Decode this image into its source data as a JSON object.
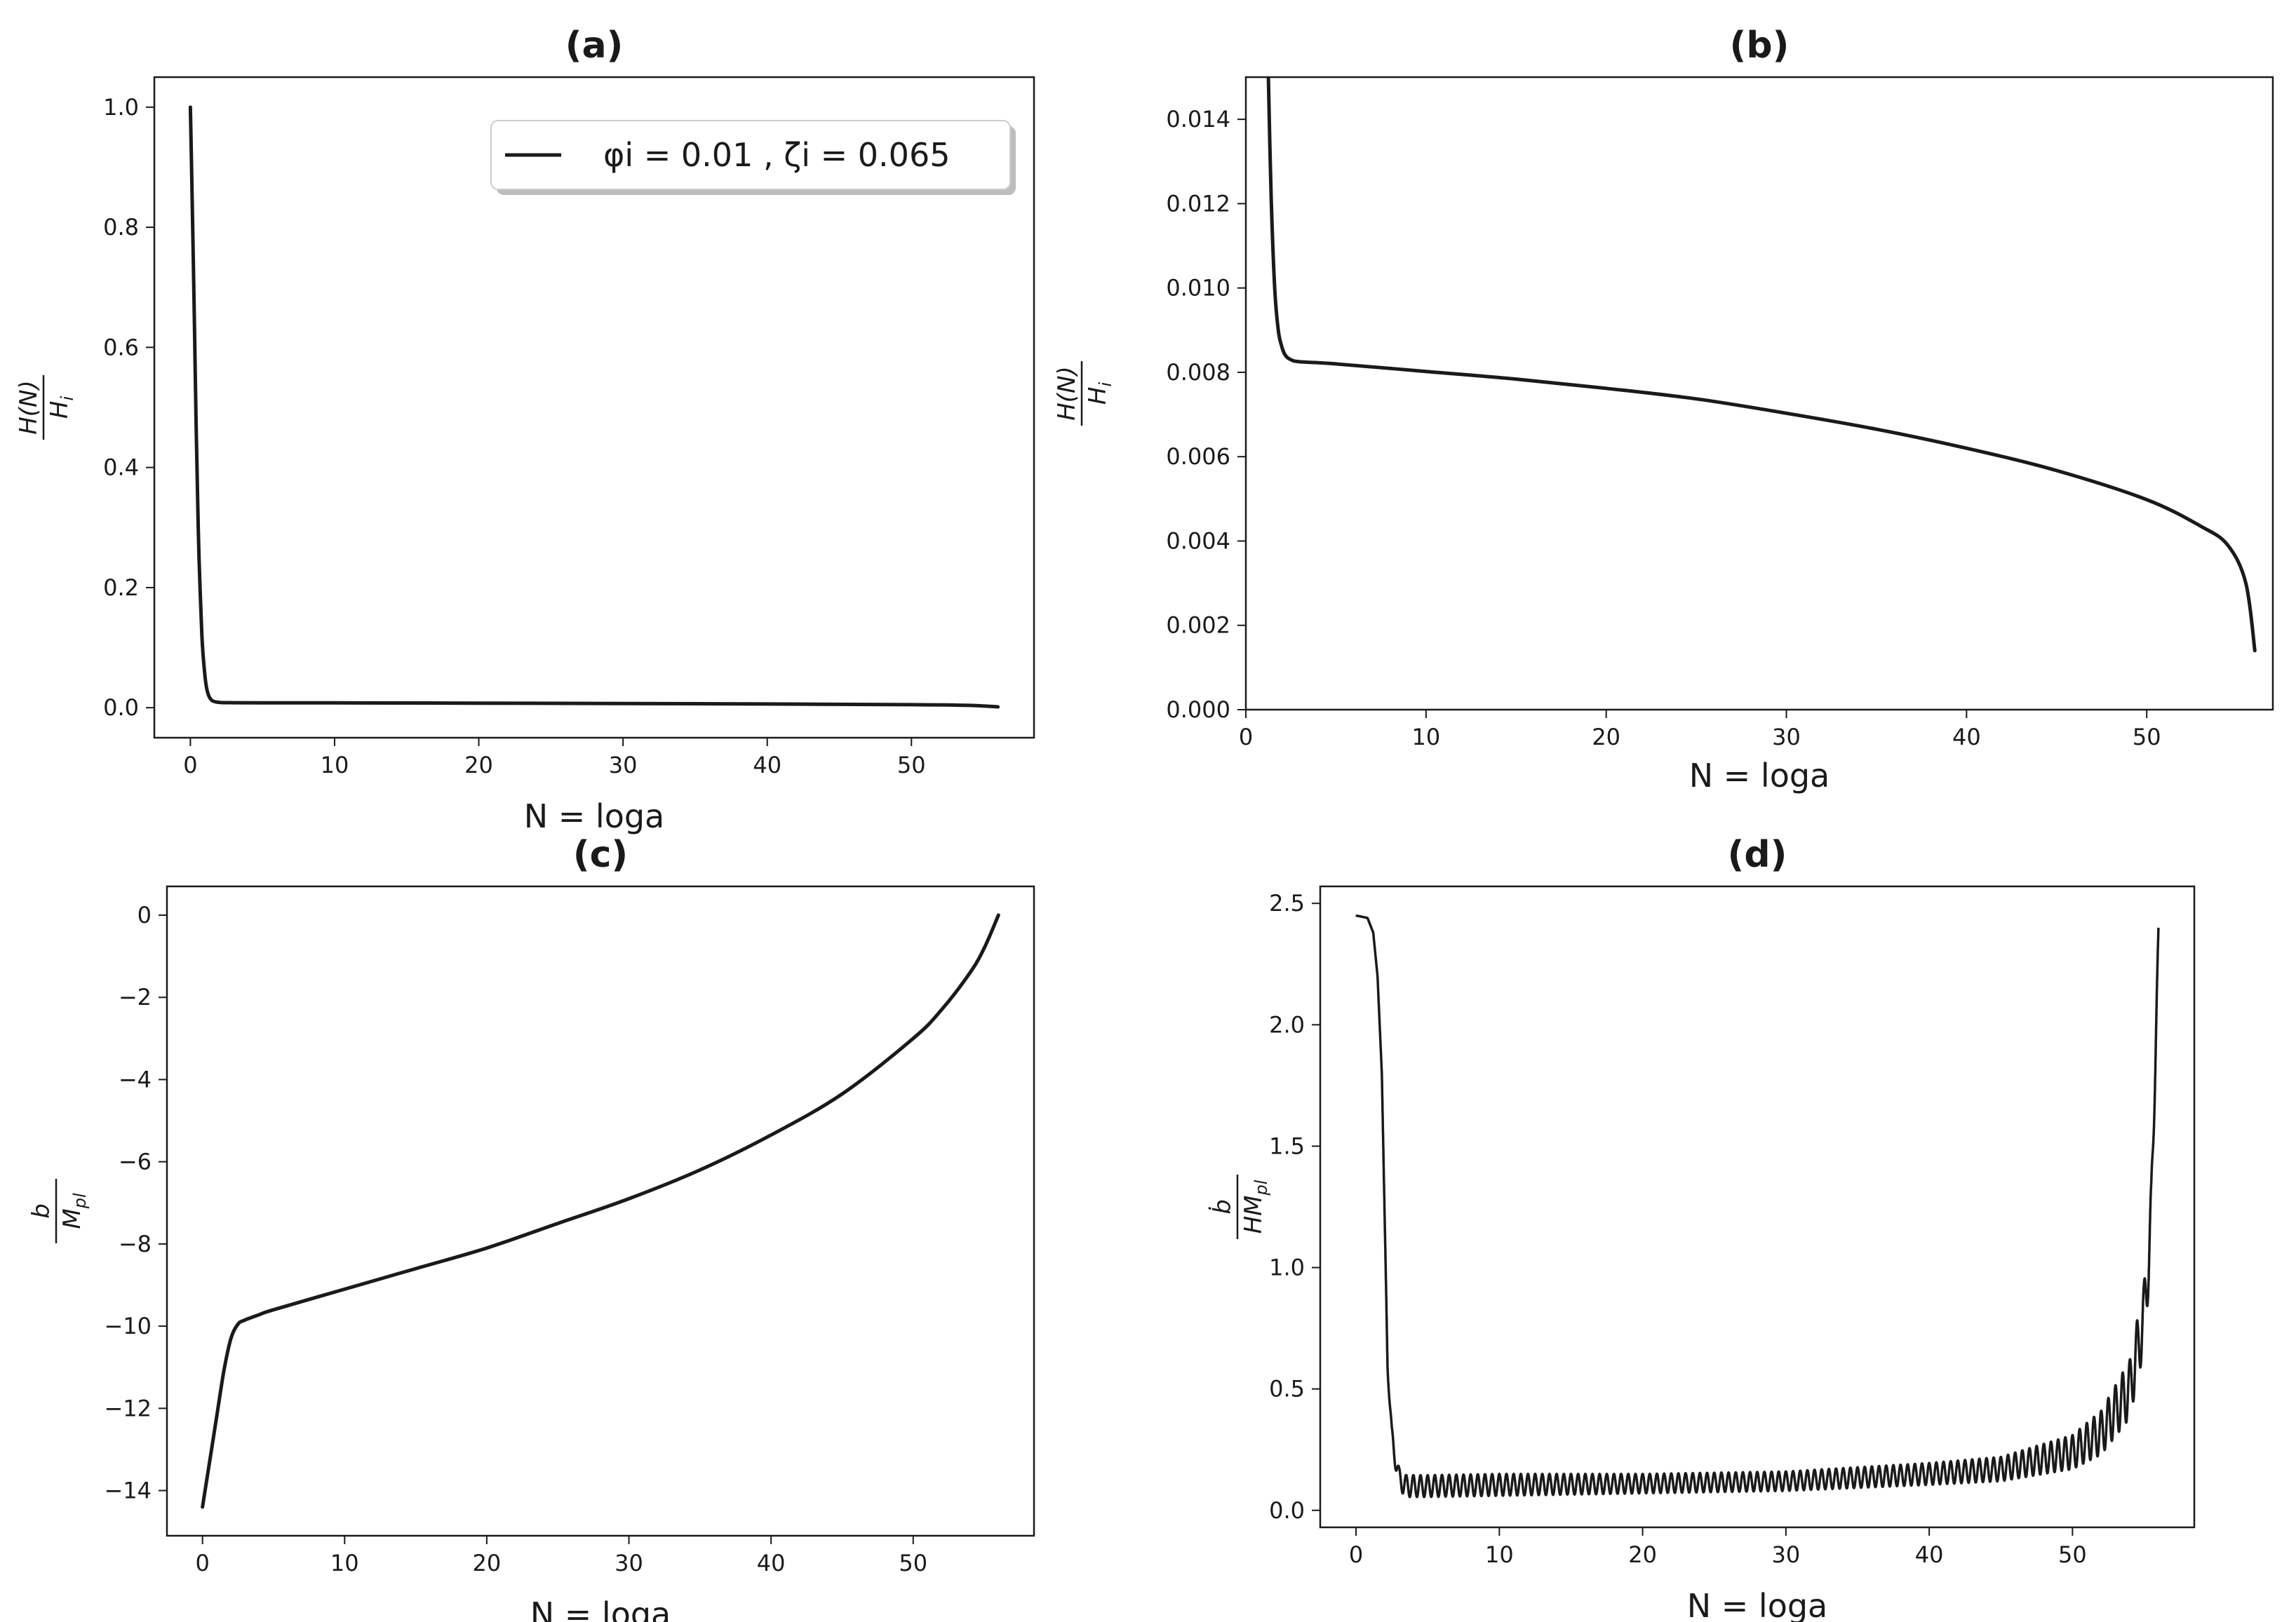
{
  "chart_data": [
    {
      "type": "line",
      "title": "(a)",
      "xlabel": "N = loga",
      "ylabel": {
        "numerator": "H(N)",
        "denominator": "H",
        "sub": "i"
      },
      "xlim": [
        -2.5,
        58.5
      ],
      "ylim": [
        -0.05,
        1.05
      ],
      "xticks": [
        0,
        10,
        20,
        30,
        40,
        50
      ],
      "yticks": [
        0.0,
        0.2,
        0.4,
        0.6,
        0.8,
        1.0
      ],
      "ytick_labels": [
        "0.0",
        "0.2",
        "0.4",
        "0.6",
        "0.8",
        "1.0"
      ],
      "grid": false,
      "legend": {
        "position": "top-right",
        "entries": [
          "φi = 0.01 , ζi = 0.065"
        ]
      },
      "series": [
        {
          "name": "φi = 0.01 , ζi = 0.065",
          "x": [
            0,
            0.1,
            0.2,
            0.3,
            0.4,
            0.5,
            0.6,
            0.8,
            1.0,
            1.2,
            1.5,
            2.0,
            2.5,
            3.0,
            5,
            10,
            20,
            30,
            40,
            50,
            54,
            56
          ],
          "y": [
            1.0,
            0.88,
            0.75,
            0.61,
            0.47,
            0.35,
            0.25,
            0.12,
            0.055,
            0.025,
            0.012,
            0.0088,
            0.0084,
            0.0083,
            0.0082,
            0.008,
            0.0076,
            0.007,
            0.0062,
            0.005,
            0.0038,
            0.0014
          ]
        }
      ]
    },
    {
      "type": "line",
      "title": "(b)",
      "xlabel": "N = loga",
      "ylabel": {
        "numerator": "H(N)",
        "denominator": "H",
        "sub": "i"
      },
      "xlim": [
        0,
        57
      ],
      "ylim": [
        0,
        0.015
      ],
      "xticks": [
        0,
        10,
        20,
        30,
        40,
        50
      ],
      "yticks": [
        0.0,
        0.002,
        0.004,
        0.006,
        0.008,
        0.01,
        0.012,
        0.014
      ],
      "ytick_labels": [
        "0.000",
        "0.002",
        "0.004",
        "0.006",
        "0.008",
        "0.010",
        "0.012",
        "0.014"
      ],
      "grid": false,
      "series": [
        {
          "x": [
            1.25,
            1.4,
            1.6,
            1.8,
            2.0,
            2.2,
            2.5,
            3.0,
            5,
            10,
            15,
            20,
            25,
            30,
            35,
            40,
            45,
            50,
            53,
            54.5,
            55.5,
            56
          ],
          "y": [
            0.015,
            0.0122,
            0.01,
            0.009,
            0.0086,
            0.0084,
            0.0083,
            0.00825,
            0.0082,
            0.00802,
            0.00784,
            0.00762,
            0.00737,
            0.00703,
            0.00665,
            0.0062,
            0.00567,
            0.00498,
            0.00435,
            0.0039,
            0.003,
            0.0014
          ]
        }
      ]
    },
    {
      "type": "line",
      "title": "(c)",
      "xlabel": "N = loga",
      "ylabel": {
        "numerator": "b",
        "denominator": "M",
        "sub": "pl"
      },
      "xlim": [
        -2.5,
        58.5
      ],
      "ylim": [
        -15.1,
        0.7
      ],
      "xticks": [
        0,
        10,
        20,
        30,
        40,
        50
      ],
      "yticks": [
        -14,
        -12,
        -10,
        -8,
        -6,
        -4,
        -2,
        0
      ],
      "ytick_labels": [
        "−14",
        "−12",
        "−10",
        "−8",
        "−6",
        "−4",
        "−2",
        "0"
      ],
      "grid": false,
      "series": [
        {
          "x": [
            0,
            0.5,
            1.0,
            1.5,
            2.0,
            2.5,
            3.0,
            4,
            5,
            10,
            15,
            20,
            25,
            30,
            35,
            40,
            45,
            50,
            52,
            54,
            55,
            56
          ],
          "y": [
            -14.4,
            -13.3,
            -12.2,
            -11.1,
            -10.3,
            -9.95,
            -9.85,
            -9.72,
            -9.6,
            -9.1,
            -8.6,
            -8.1,
            -7.5,
            -6.9,
            -6.2,
            -5.35,
            -4.35,
            -3.0,
            -2.3,
            -1.4,
            -0.8,
            0.0
          ]
        }
      ]
    },
    {
      "type": "line",
      "title": "(d)",
      "xlabel": "N = loga",
      "ylabel": {
        "numerator": "ḃ",
        "denominator": "HM",
        "sub": "pl"
      },
      "xlim": [
        -2.5,
        58.5
      ],
      "ylim": [
        -0.07,
        2.57
      ],
      "xticks": [
        0,
        10,
        20,
        30,
        40,
        50
      ],
      "yticks": [
        0.0,
        0.5,
        1.0,
        1.5,
        2.0,
        2.5
      ],
      "ytick_labels": [
        "0.0",
        "0.5",
        "1.0",
        "1.5",
        "2.0",
        "2.5"
      ],
      "grid": false,
      "series": [
        {
          "description": "oscillating band: mean and half-amplitude",
          "x": [
            0,
            0.8,
            1.2,
            1.5,
            1.8,
            2.0,
            2.2,
            2.5,
            2.8,
            3.0,
            3.5,
            4,
            5,
            10,
            20,
            30,
            40,
            45,
            50,
            52,
            54,
            55,
            55.5,
            56
          ],
          "mean": [
            2.45,
            2.44,
            2.38,
            2.2,
            1.8,
            1.2,
            0.6,
            0.3,
            0.2,
            0.13,
            0.1,
            0.1,
            0.1,
            0.105,
            0.11,
            0.12,
            0.15,
            0.17,
            0.24,
            0.32,
            0.5,
            0.8,
            1.2,
            2.4
          ],
          "amp": [
            0,
            0,
            0,
            0,
            0,
            0,
            0.02,
            0.04,
            0.045,
            0.045,
            0.045,
            0.045,
            0.045,
            0.045,
            0.04,
            0.04,
            0.045,
            0.05,
            0.07,
            0.09,
            0.12,
            0.14,
            0.15,
            0.0
          ]
        }
      ]
    }
  ]
}
